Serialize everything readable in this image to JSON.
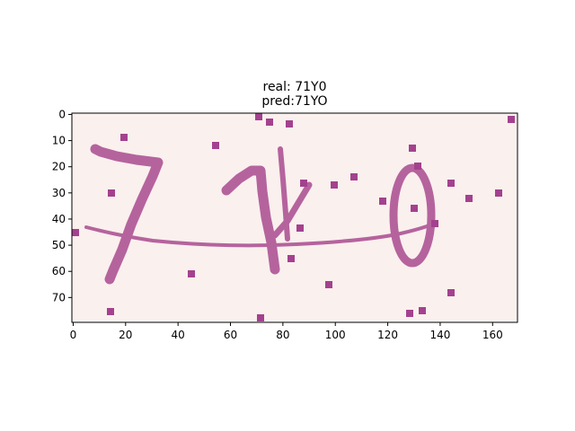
{
  "figure": {
    "title_line1": "real: 71Y0",
    "title_line2": "pred:71YO"
  },
  "chart_data": {
    "type": "image",
    "title": "real: 71Y0\npred:71YO",
    "xlim": [
      0,
      170
    ],
    "ylim": [
      80,
      0
    ],
    "x_ticks": [
      0,
      20,
      40,
      60,
      80,
      100,
      120,
      140,
      160
    ],
    "y_ticks": [
      0,
      10,
      20,
      30,
      40,
      50,
      60,
      70
    ],
    "grid": false,
    "colors": {
      "background": "#faf0ee",
      "ink": "#b5639d",
      "noise": "#a4418e"
    },
    "content": "captcha image showing handwritten characters 7, 1 with a crossing stroke, and 0, a curved noise line and scattered plus-shaped noise marks"
  }
}
